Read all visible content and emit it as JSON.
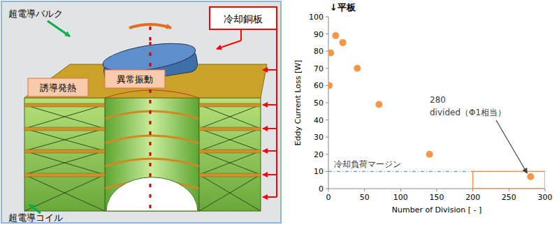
{
  "diagram": {
    "labels": {
      "bulk": "超電導バルク",
      "cooling_plate": "冷却銅板",
      "induction_heating": "誘導発熱",
      "abnormal_vibration": "異常振動",
      "coil": "超電導コイル"
    }
  },
  "chart_data": {
    "type": "scatter",
    "title": "↓平板",
    "x_label": "Number of Division [ - ]",
    "y_label": "Eddy Current Loss [W]",
    "x": [
      1,
      3,
      10,
      20,
      40,
      70,
      140,
      280
    ],
    "values": [
      60,
      79,
      89,
      85,
      70,
      49,
      20,
      7
    ],
    "color": "#f79646",
    "marker": "circle",
    "xlim": [
      0,
      300
    ],
    "xticks": [
      0,
      50,
      100,
      150,
      200,
      250,
      300
    ],
    "ylim": [
      0,
      100
    ],
    "yticks": [
      0,
      10,
      20,
      30,
      40,
      50,
      60,
      70,
      80,
      90,
      100
    ],
    "grid": false,
    "reference_line": {
      "value": 10,
      "label": "冷却負荷マージン",
      "color": "#5b9bd5",
      "line_style": "dashed"
    },
    "highlight_box": {
      "x": [
        200,
        300
      ],
      "y": [
        0,
        10
      ],
      "color": "#f79646"
    },
    "annotation": {
      "lines": [
        "280",
        "divided（Φ1相当）"
      ],
      "x": 280,
      "y": 7
    }
  }
}
